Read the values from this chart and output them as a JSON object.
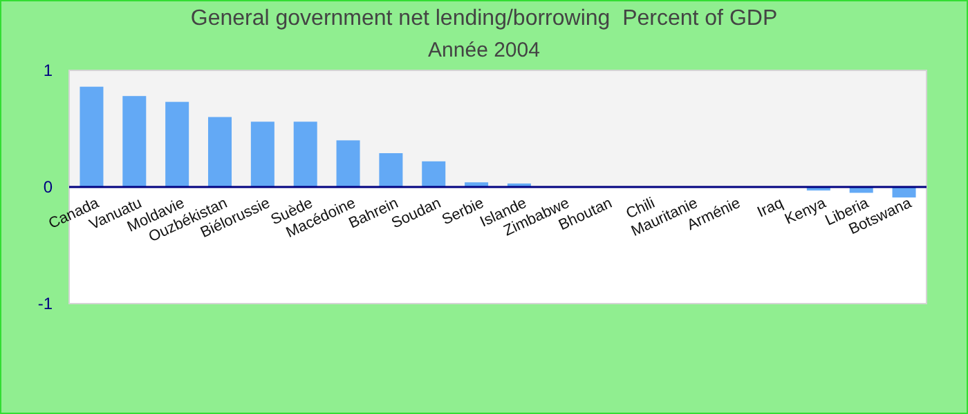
{
  "chart_data": {
    "type": "bar",
    "title": "General government net lending/borrowing  Percent of GDP",
    "subtitle": "Année 2004",
    "categories": [
      "Canada",
      "Vanuatu",
      "Moldavie",
      "Ouzbékistan",
      "Biélorussie",
      "Suède",
      "Macédoine",
      "Bahrein",
      "Soudan",
      "Serbie",
      "Islande",
      "Zimbabwe",
      "Bhoutan",
      "Chili",
      "Mauritanie",
      "Arménie",
      "Iraq",
      "Kenya",
      "Liberia",
      "Botswana"
    ],
    "values": [
      0.86,
      0.78,
      0.73,
      0.6,
      0.56,
      0.56,
      0.4,
      0.29,
      0.22,
      0.04,
      0.03,
      0,
      0,
      0,
      0,
      0,
      0,
      -0.03,
      -0.05,
      -0.09
    ],
    "color": "#63a9f5",
    "ylim": [
      -1,
      1
    ],
    "yticks": [
      -1,
      0,
      1
    ],
    "grid": false,
    "bands": [
      {
        "axis": "y",
        "from": 0,
        "to": 1,
        "color": "#f3f3f3"
      }
    ]
  }
}
